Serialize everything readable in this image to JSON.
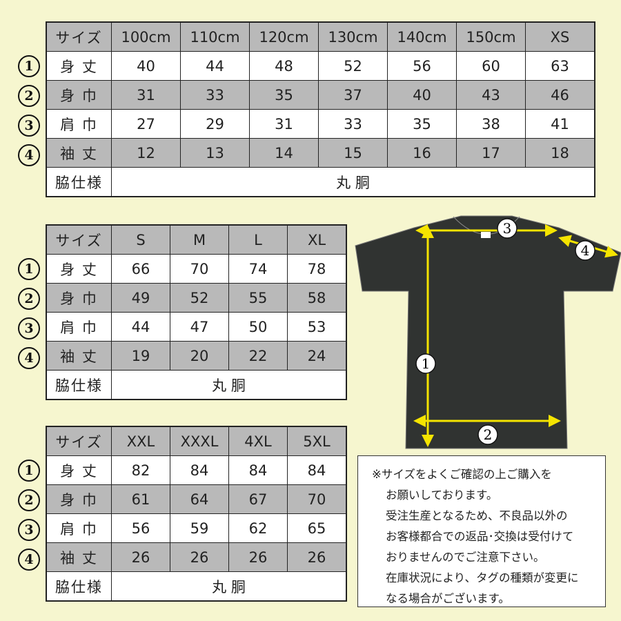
{
  "tables": [
    {
      "header_label": "サイズ",
      "sizes": [
        "100cm",
        "110cm",
        "120cm",
        "130cm",
        "140cm",
        "150cm",
        "XS"
      ],
      "rows": [
        {
          "marker": "①",
          "label": "身 丈",
          "values": [
            "40",
            "44",
            "48",
            "52",
            "56",
            "60",
            "63"
          ]
        },
        {
          "marker": "②",
          "label": "身 巾",
          "values": [
            "31",
            "33",
            "35",
            "37",
            "40",
            "43",
            "46"
          ]
        },
        {
          "marker": "③",
          "label": "肩 巾",
          "values": [
            "27",
            "29",
            "31",
            "33",
            "35",
            "38",
            "41"
          ]
        },
        {
          "marker": "④",
          "label": "袖 丈",
          "values": [
            "12",
            "13",
            "14",
            "15",
            "16",
            "17",
            "18"
          ]
        }
      ],
      "side_label": "脇仕様",
      "side_value": "丸 胴"
    },
    {
      "header_label": "サイズ",
      "sizes": [
        "S",
        "M",
        "L",
        "XL"
      ],
      "rows": [
        {
          "marker": "①",
          "label": "身 丈",
          "values": [
            "66",
            "70",
            "74",
            "78"
          ]
        },
        {
          "marker": "②",
          "label": "身 巾",
          "values": [
            "49",
            "52",
            "55",
            "58"
          ]
        },
        {
          "marker": "③",
          "label": "肩 巾",
          "values": [
            "44",
            "47",
            "50",
            "53"
          ]
        },
        {
          "marker": "④",
          "label": "袖 丈",
          "values": [
            "19",
            "20",
            "22",
            "24"
          ]
        }
      ],
      "side_label": "脇仕様",
      "side_value": "丸 胴"
    },
    {
      "header_label": "サイズ",
      "sizes": [
        "XXL",
        "XXXL",
        "4XL",
        "5XL"
      ],
      "rows": [
        {
          "marker": "①",
          "label": "身 丈",
          "values": [
            "82",
            "84",
            "84",
            "84"
          ]
        },
        {
          "marker": "②",
          "label": "身 巾",
          "values": [
            "61",
            "64",
            "67",
            "70"
          ]
        },
        {
          "marker": "③",
          "label": "肩 巾",
          "values": [
            "56",
            "59",
            "62",
            "65"
          ]
        },
        {
          "marker": "④",
          "label": "袖 丈",
          "values": [
            "26",
            "26",
            "26",
            "26"
          ]
        }
      ],
      "side_label": "脇仕様",
      "side_value": "丸 胴"
    }
  ],
  "diagram": {
    "labels": [
      "1",
      "2",
      "3",
      "4"
    ],
    "shirt_color": "#303331",
    "arrow_color": "#f5e400"
  },
  "note": {
    "lines": [
      "※サイズをよくご確認の上ご購入を",
      "お願いしております。",
      "受注生産となるため、不良品以外の",
      "お客様都合での返品･交換は受付けて",
      "おりませんのでご注意下さい。",
      "在庫状況により、タグの種類が変更に",
      "なる場合がございます。"
    ]
  },
  "colors": {
    "background": "#f6f6cf",
    "header_gray": "#b9b9b9"
  }
}
